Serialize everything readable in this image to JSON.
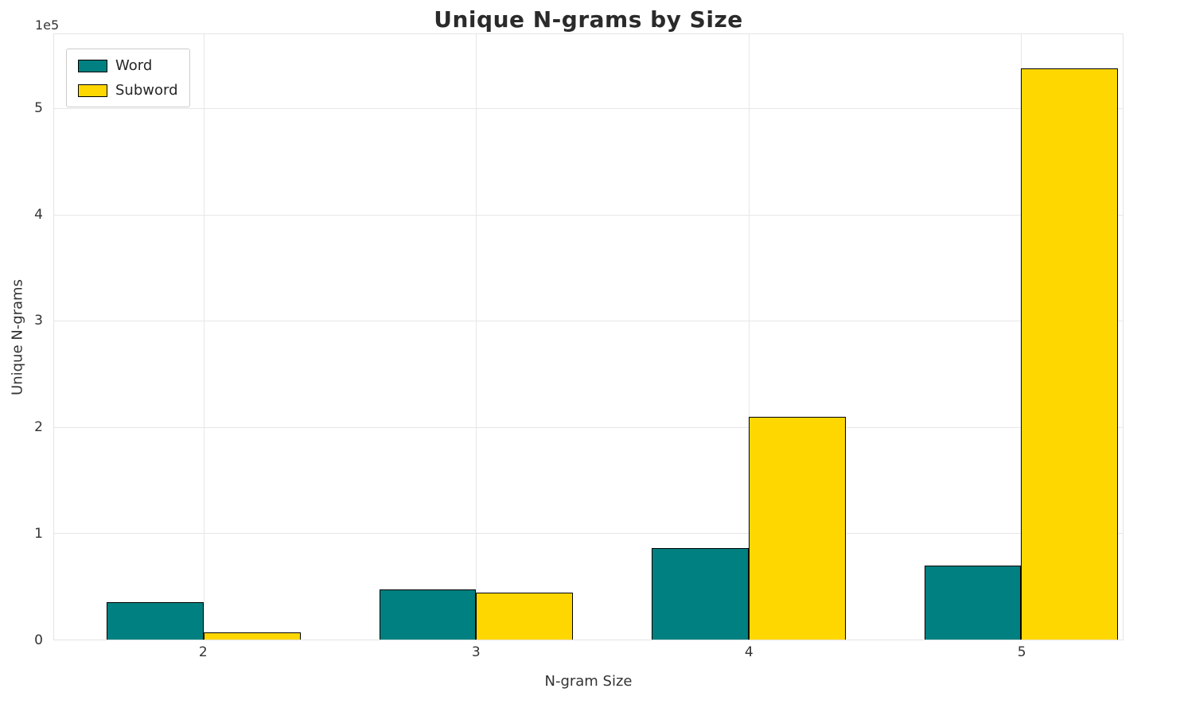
{
  "chart_data": {
    "type": "bar",
    "title": "Unique N-grams by Size",
    "xlabel": "N-gram Size",
    "ylabel": "Unique N-grams",
    "y_offset_label": "1e5",
    "categories": [
      "2",
      "3",
      "4",
      "5"
    ],
    "series": [
      {
        "name": "Word",
        "color": "#008080",
        "values": [
          35500,
          47500,
          86500,
          70000
        ]
      },
      {
        "name": "Subword",
        "color": "#FFD700",
        "values": [
          7000,
          44000,
          210000,
          538000
        ]
      }
    ],
    "ylim": [
      0,
      570000
    ],
    "yticks": [
      0,
      100000,
      200000,
      300000,
      400000,
      500000
    ],
    "ytick_labels": [
      "0",
      "1",
      "2",
      "3",
      "4",
      "5"
    ],
    "grid": true,
    "legend_position": "upper left",
    "bar_edge_color": "#000000"
  }
}
